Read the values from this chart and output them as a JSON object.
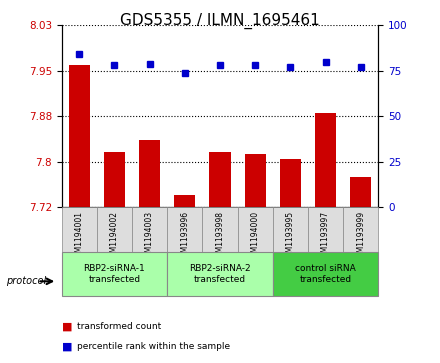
{
  "title": "GDS5355 / ILMN_1695461",
  "samples": [
    "GSM1194001",
    "GSM1194002",
    "GSM1194003",
    "GSM1193996",
    "GSM1193998",
    "GSM1194000",
    "GSM1193995",
    "GSM1193997",
    "GSM1193999"
  ],
  "bar_values": [
    7.96,
    7.815,
    7.835,
    7.745,
    7.815,
    7.813,
    7.805,
    7.88,
    7.775
  ],
  "dot_values": [
    84,
    78,
    79,
    74,
    78,
    78,
    77,
    80,
    77
  ],
  "ymin": 7.725,
  "ymax": 8.025,
  "y2min": 0,
  "y2max": 100,
  "yticks": [
    7.725,
    7.8,
    7.875,
    7.95,
    8.025
  ],
  "y2ticks": [
    0,
    25,
    50,
    75,
    100
  ],
  "bar_color": "#cc0000",
  "dot_color": "#0000cc",
  "groups": [
    {
      "label": "RBP2-siRNA-1\ntransfected",
      "indices": [
        0,
        1,
        2
      ],
      "color": "#aaffaa"
    },
    {
      "label": "RBP2-siRNA-2\ntransfected",
      "indices": [
        3,
        4,
        5
      ],
      "color": "#aaffaa"
    },
    {
      "label": "control siRNA\ntransfected",
      "indices": [
        6,
        7,
        8
      ],
      "color": "#44cc44"
    }
  ],
  "protocol_label": "protocol",
  "legend_bar_label": "transformed count",
  "legend_dot_label": "percentile rank within the sample",
  "title_fontsize": 11,
  "tick_fontsize": 7.5
}
